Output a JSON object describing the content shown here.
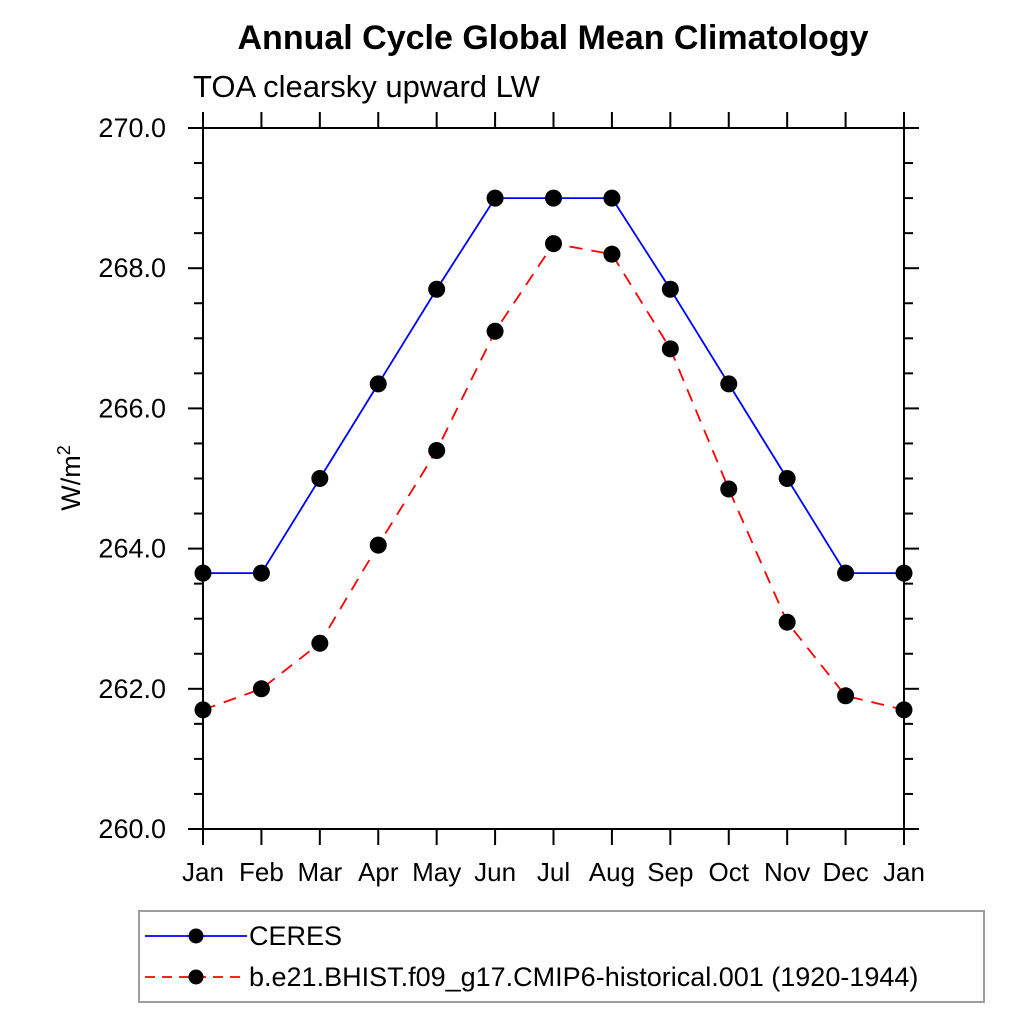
{
  "chart_data": {
    "type": "line",
    "title": "Annual Cycle Global Mean Climatology",
    "subtitle": "TOA clearsky upward LW",
    "ylabel": "W/m²",
    "x_categories": [
      "Jan",
      "Feb",
      "Mar",
      "Apr",
      "May",
      "Jun",
      "Jul",
      "Aug",
      "Sep",
      "Oct",
      "Nov",
      "Dec",
      "Jan"
    ],
    "ylim": [
      260.0,
      270.0
    ],
    "ytick_labels": [
      "260.0",
      "262.0",
      "264.0",
      "266.0",
      "268.0",
      "270.0"
    ],
    "ytick_major_step": 2.0,
    "ytick_minor_step": 0.5,
    "grid": false,
    "legend_position": "bottom-left",
    "axis_color": "#000000",
    "marker_color": "#000000",
    "series": [
      {
        "name": "CERES",
        "color": "#0000ff",
        "line_style": "solid",
        "values": [
          263.65,
          263.65,
          265.0,
          266.35,
          267.7,
          269.0,
          269.0,
          269.0,
          267.7,
          266.35,
          265.0,
          263.65,
          263.65
        ]
      },
      {
        "name": "b.e21.BHIST.f09_g17.CMIP6-historical.001 (1920-1944)",
        "color": "#ff0000",
        "line_style": "dashed",
        "values": [
          261.7,
          262.0,
          262.65,
          264.05,
          265.4,
          267.1,
          268.35,
          268.2,
          266.85,
          264.85,
          262.95,
          261.9,
          261.7
        ]
      }
    ]
  }
}
